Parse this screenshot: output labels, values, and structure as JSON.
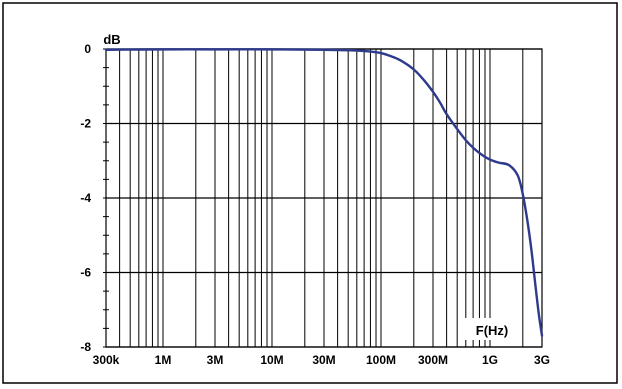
{
  "chart_data": {
    "type": "line",
    "title": "",
    "ylabel": "dB",
    "xlabel": "F(Hz)",
    "x_scale": "log",
    "xlim": [
      300000,
      3000000000
    ],
    "ylim": [
      -8,
      0
    ],
    "grid": true,
    "x_tick_labels": [
      "300k",
      "1M",
      "3M",
      "10M",
      "30M",
      "100M",
      "300M",
      "1G",
      "3G"
    ],
    "x_tick_values": [
      300000,
      1000000,
      3000000,
      10000000,
      30000000,
      100000000,
      300000000,
      1000000000,
      3000000000
    ],
    "y_tick_labels": [
      "0",
      "-2",
      "-4",
      "-6",
      "-8"
    ],
    "y_tick_values": [
      0,
      -2,
      -4,
      -6,
      -8
    ],
    "line_color": "#2e3a8c",
    "series": [
      {
        "x": [
          300000,
          1000000,
          3000000,
          10000000,
          30000000,
          60000000,
          80000000,
          100000000,
          120000000,
          150000000,
          200000000,
          250000000,
          300000000,
          350000000,
          400000000,
          500000000,
          600000000,
          700000000,
          850000000,
          1000000000,
          1200000000,
          1500000000,
          1800000000,
          2000000000,
          2200000000,
          2400000000,
          2600000000,
          2800000000,
          3000000000
        ],
        "y": [
          -0.02,
          -0.01,
          -0.01,
          -0.01,
          -0.02,
          -0.04,
          -0.07,
          -0.11,
          -0.18,
          -0.3,
          -0.55,
          -0.85,
          -1.15,
          -1.45,
          -1.75,
          -2.15,
          -2.45,
          -2.65,
          -2.85,
          -2.97,
          -3.05,
          -3.12,
          -3.4,
          -3.9,
          -4.6,
          -5.4,
          -6.3,
          -7.1,
          -7.7
        ]
      }
    ]
  }
}
